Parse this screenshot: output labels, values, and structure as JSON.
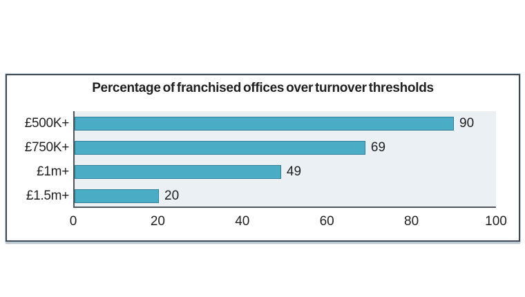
{
  "chart_data": {
    "type": "bar",
    "orientation": "horizontal",
    "title": "Percentage of franchised offices over turnover thresholds",
    "categories": [
      "£500K+",
      "£750K+",
      "£1m+",
      "£1.5m+"
    ],
    "values": [
      90,
      69,
      49,
      20
    ],
    "data_labels": [
      90,
      69,
      49,
      20
    ],
    "x_ticks": [
      0,
      20,
      40,
      60,
      80,
      100
    ],
    "xlim": [
      0,
      100
    ],
    "xlabel": "",
    "ylabel": "",
    "grid": false,
    "legend": "none",
    "colors": {
      "bar_fill": "#4BACC6",
      "bar_border": "#2F7E99",
      "plot_background": "#EAF0F4",
      "axis_line": "#50565C",
      "frame_border": "#3D4852",
      "frame_outline": "#C9DBE6",
      "text": "#1F1F1F"
    }
  }
}
